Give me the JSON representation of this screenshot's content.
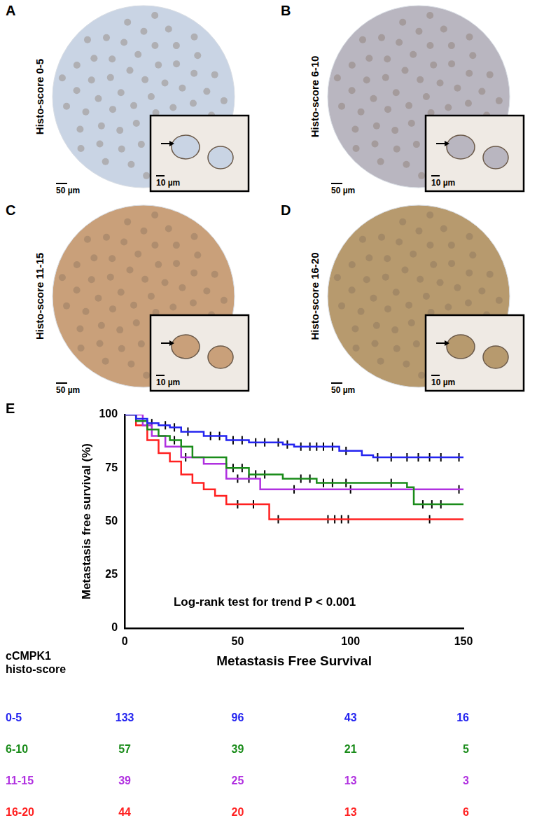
{
  "panels": [
    {
      "letter": "A",
      "label": "Histo-score 0-5",
      "scale_main": "50 µm",
      "scale_inset": "10 µm",
      "color": "#c9d4e4"
    },
    {
      "letter": "B",
      "label": "Histo-score 6-10",
      "scale_main": "50 µm",
      "scale_inset": "10 µm",
      "color": "#b9b6c0"
    },
    {
      "letter": "C",
      "label": "Histo-score 11-15",
      "scale_main": "50 µm",
      "scale_inset": "10 µm",
      "color": "#c9a07a"
    },
    {
      "letter": "D",
      "label": "Histo-score 16-20",
      "scale_main": "50 µm",
      "scale_inset": "10 µm",
      "color": "#b79a6e"
    }
  ],
  "chart_data": {
    "type": "line",
    "panel_letter": "E",
    "x_label": "Metastasis Free Survival",
    "y_label": "Metastasis free survival (%)",
    "annotation": "Log-rank test for trend P < 0.001",
    "xlim": [
      0,
      150
    ],
    "xticks": [
      0,
      50,
      100,
      150
    ],
    "ylim": [
      0,
      100
    ],
    "yticks": [
      0,
      25,
      50,
      75,
      100
    ],
    "grid": false,
    "line_style": "stepped",
    "table_title": "cCMPK1 histo-score",
    "table_x": [
      0,
      50,
      100,
      150
    ],
    "series": [
      {
        "name": "0-5",
        "color": "#2424f0",
        "x": [
          0,
          5,
          10,
          15,
          20,
          25,
          35,
          45,
          55,
          70,
          75,
          95,
          105,
          110,
          150
        ],
        "values": [
          100,
          98,
          96,
          95,
          94,
          92,
          90,
          88,
          87,
          86,
          85,
          83,
          81,
          80,
          80
        ],
        "censored": [
          12,
          18,
          22,
          28,
          38,
          42,
          48,
          52,
          58,
          62,
          68,
          72,
          78,
          82,
          85,
          88,
          92,
          98,
          112,
          118,
          125,
          130,
          135,
          140,
          148
        ],
        "at_risk": [
          133,
          96,
          43,
          16
        ]
      },
      {
        "name": "6-10",
        "color": "#1a8c1a",
        "x": [
          0,
          5,
          10,
          15,
          20,
          25,
          30,
          45,
          55,
          70,
          85,
          125,
          128,
          150
        ],
        "values": [
          100,
          97,
          93,
          90,
          88,
          85,
          80,
          75,
          72,
          70,
          68,
          66,
          58,
          58
        ],
        "censored": [
          22,
          48,
          52,
          58,
          62,
          78,
          82,
          88,
          92,
          98,
          118,
          132,
          136,
          140
        ],
        "at_risk": [
          57,
          39,
          21,
          5
        ]
      },
      {
        "name": "11-15",
        "color": "#b030e0",
        "x": [
          0,
          8,
          12,
          18,
          25,
          35,
          45,
          60,
          150
        ],
        "values": [
          100,
          95,
          90,
          85,
          80,
          77,
          70,
          65,
          65
        ],
        "censored": [
          27,
          50,
          55,
          75,
          100,
          148
        ],
        "at_risk": [
          39,
          25,
          13,
          3
        ]
      },
      {
        "name": "16-20",
        "color": "#ff2020",
        "x": [
          0,
          5,
          10,
          15,
          20,
          25,
          30,
          35,
          40,
          45,
          62,
          64,
          150
        ],
        "values": [
          100,
          95,
          88,
          82,
          78,
          72,
          68,
          65,
          62,
          58,
          58,
          51,
          51
        ],
        "censored": [
          50,
          57,
          68,
          90,
          93,
          96,
          99,
          135
        ],
        "at_risk": [
          44,
          20,
          13,
          6
        ]
      }
    ]
  }
}
